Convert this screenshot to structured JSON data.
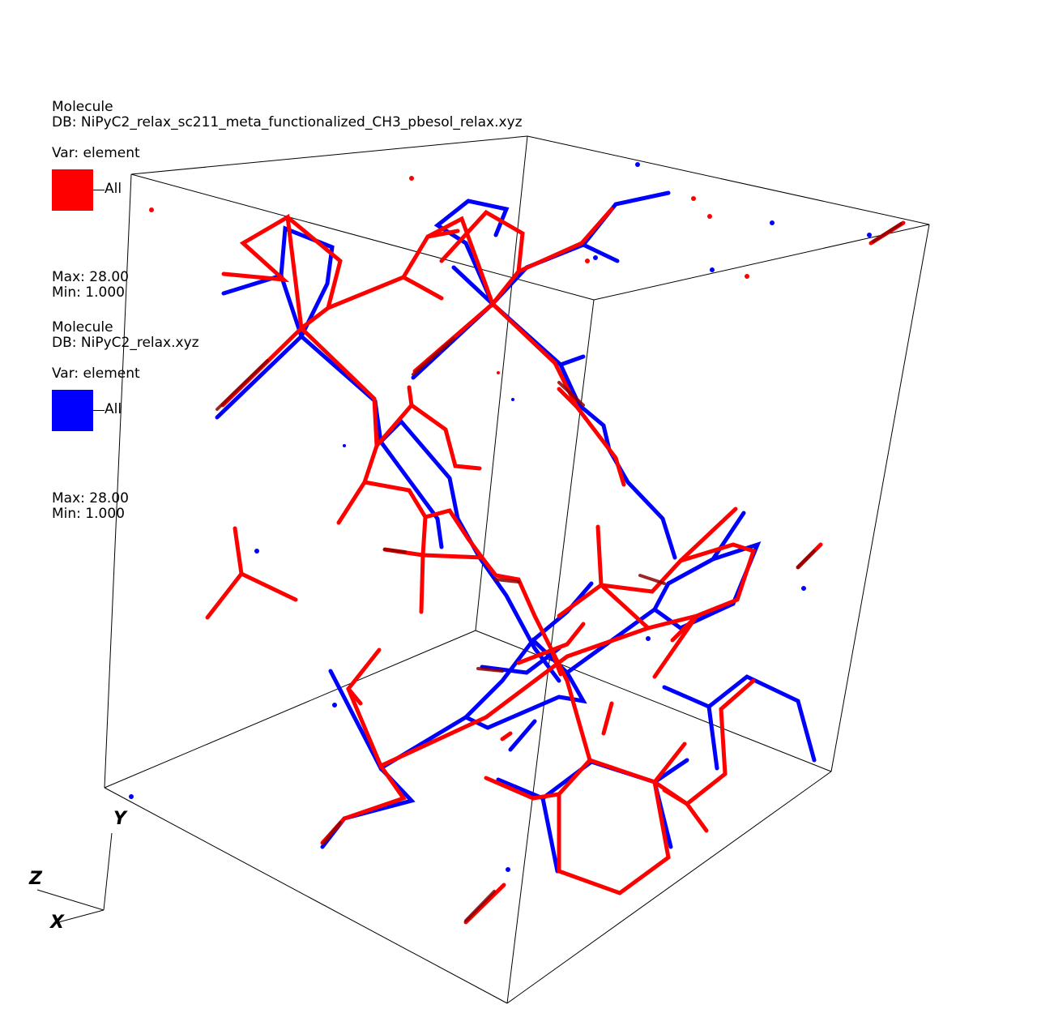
{
  "legends": [
    {
      "title": "Molecule",
      "db": "DB: NiPyC2_relax_sc211_meta_functionalized_CH3_pbesol_relax.xyz",
      "var": "Var: element",
      "swatch_label": "All",
      "color": "#ff0000",
      "max": "Max:  28.00",
      "min": "Min:  1.000"
    },
    {
      "title": "Molecule",
      "db": "DB: NiPyC2_relax.xyz",
      "var": "Var: element",
      "swatch_label": "All",
      "color": "#0000ff",
      "max": "Max:  28.00",
      "min": "Min:  1.000"
    }
  ],
  "axes": {
    "x": "X",
    "y": "Y",
    "z": "Z"
  },
  "colors": {
    "molecule_a": "#ff0000",
    "molecule_b": "#0000ff",
    "box": "#000000"
  }
}
